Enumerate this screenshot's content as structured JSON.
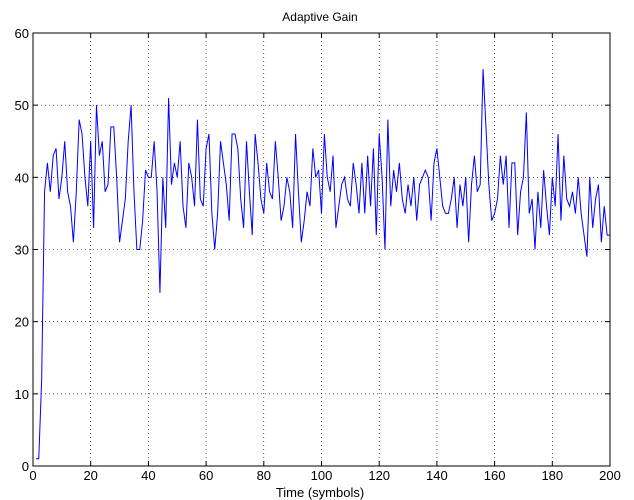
{
  "chart_data": {
    "type": "line",
    "title": "Adaptive Gain",
    "xlabel": "Time (symbols)",
    "ylabel": "",
    "xlim": [
      0,
      200
    ],
    "ylim": [
      0,
      60
    ],
    "xticks": [
      0,
      20,
      40,
      60,
      80,
      100,
      120,
      140,
      160,
      180,
      200
    ],
    "yticks": [
      0,
      10,
      20,
      30,
      40,
      50,
      60
    ],
    "grid": true,
    "colors": {
      "line": "#0000ff",
      "axes": "#000000",
      "background": "#ffffff"
    },
    "series": [
      {
        "x": [
          1,
          2,
          3,
          4,
          5,
          6,
          7,
          8,
          9,
          10,
          11,
          12,
          13,
          14,
          15,
          16,
          17,
          18,
          19,
          20,
          21,
          22,
          23,
          24,
          25,
          26,
          27,
          28,
          29,
          30,
          31,
          32,
          33,
          34,
          35,
          36,
          37,
          38,
          39,
          40,
          41,
          42,
          43,
          44,
          45,
          46,
          47,
          48,
          49,
          50,
          51,
          52,
          53,
          54,
          55,
          56,
          57,
          58,
          59,
          60,
          61,
          62,
          63,
          64,
          65,
          66,
          67,
          68,
          69,
          70,
          71,
          72,
          73,
          74,
          75,
          76,
          77,
          78,
          79,
          80,
          81,
          82,
          83,
          84,
          85,
          86,
          87,
          88,
          89,
          90,
          91,
          92,
          93,
          94,
          95,
          96,
          97,
          98,
          99,
          100,
          101,
          102,
          103,
          104,
          105,
          106,
          107,
          108,
          109,
          110,
          111,
          112,
          113,
          114,
          115,
          116,
          117,
          118,
          119,
          120,
          121,
          122,
          123,
          124,
          125,
          126,
          127,
          128,
          129,
          130,
          131,
          132,
          133,
          134,
          135,
          136,
          137,
          138,
          139,
          140,
          141,
          142,
          143,
          144,
          145,
          146,
          147,
          148,
          149,
          150,
          151,
          152,
          153,
          154,
          155,
          156,
          157,
          158,
          159,
          160,
          161,
          162,
          163,
          164,
          165,
          166,
          167,
          168,
          169,
          170,
          171,
          172,
          173,
          174,
          175,
          176,
          177,
          178,
          179,
          180,
          181,
          182,
          183,
          184,
          185,
          186,
          187,
          188,
          189,
          190,
          191,
          192,
          193,
          194,
          195,
          196,
          197,
          198,
          199,
          200
        ],
        "y": [
          1,
          1,
          12,
          38,
          42,
          38,
          43,
          44,
          37,
          40,
          45,
          38,
          36,
          31,
          38,
          48,
          46,
          40,
          36,
          45,
          33,
          50,
          43,
          45,
          38,
          39,
          47,
          47,
          40,
          31,
          34,
          37,
          45,
          50,
          38,
          30,
          30,
          34,
          41,
          40,
          40,
          45,
          38,
          24,
          40,
          33,
          51,
          39,
          42,
          40,
          45,
          36,
          33,
          42,
          40,
          36,
          48,
          37,
          36,
          44,
          46,
          35,
          30,
          35,
          45,
          42,
          39,
          34,
          46,
          46,
          44,
          37,
          33,
          45,
          38,
          32,
          46,
          42,
          37,
          35,
          42,
          38,
          37,
          45,
          40,
          34,
          36,
          40,
          38,
          33,
          46,
          38,
          31,
          34,
          38,
          36,
          44,
          40,
          41,
          35,
          46,
          40,
          38,
          43,
          33,
          36,
          39,
          40,
          37,
          36,
          42,
          39,
          35,
          42,
          35,
          43,
          36,
          44,
          32,
          46,
          40,
          30,
          48,
          36,
          41,
          38,
          42,
          37,
          35,
          39,
          36,
          40,
          34,
          39,
          40,
          41,
          40,
          34,
          42,
          44,
          40,
          36,
          35,
          35,
          37,
          40,
          33,
          39,
          36,
          40,
          31,
          39,
          43,
          38,
          39,
          55,
          47,
          39,
          34,
          35,
          37,
          43,
          39,
          43,
          33,
          42,
          42,
          32,
          38,
          40,
          49,
          35,
          37,
          30,
          38,
          33,
          41,
          36,
          32,
          40,
          36,
          46,
          34,
          43,
          37,
          36,
          38,
          35,
          40,
          35,
          32,
          29,
          40,
          33,
          37,
          39,
          31,
          36,
          32,
          32
        ]
      }
    ]
  }
}
